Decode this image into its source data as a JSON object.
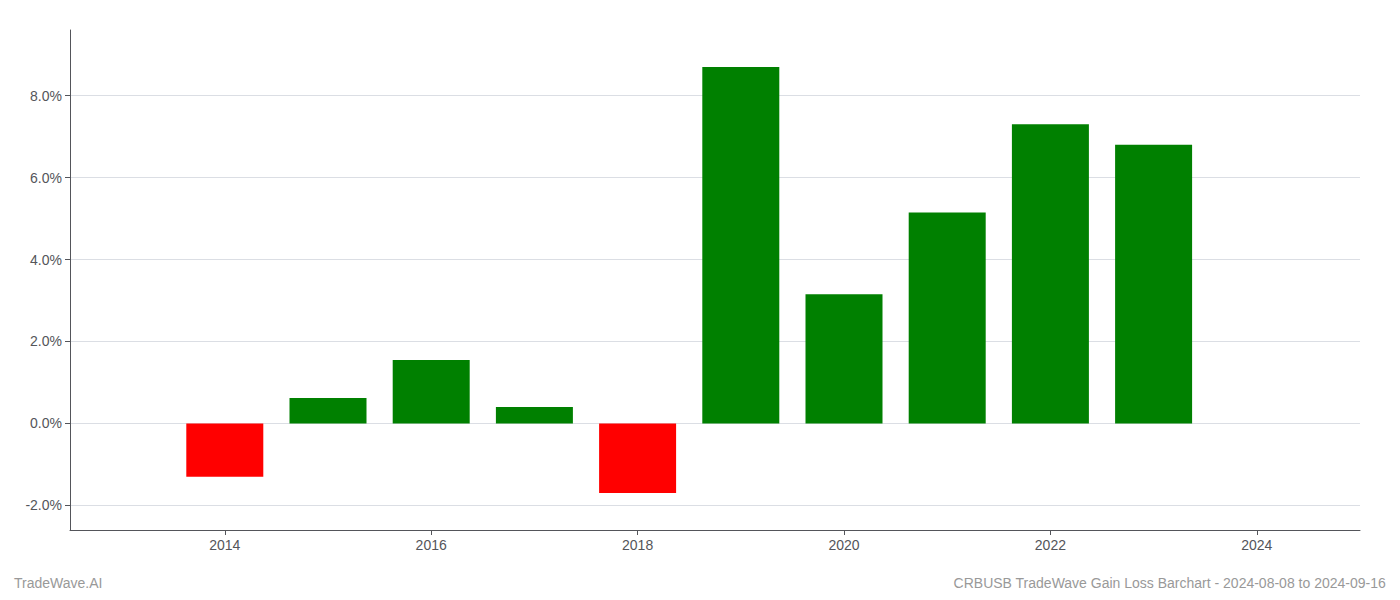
{
  "chart_data": {
    "type": "bar",
    "x": [
      2014,
      2015,
      2016,
      2017,
      2018,
      2019,
      2020,
      2021,
      2022,
      2023
    ],
    "values": [
      -1.3,
      0.62,
      1.55,
      0.4,
      -1.7,
      8.7,
      3.15,
      5.15,
      7.3,
      6.8
    ],
    "colors": [
      "#ff0000",
      "#008000",
      "#008000",
      "#008000",
      "#ff0000",
      "#008000",
      "#008000",
      "#008000",
      "#008000",
      "#008000"
    ],
    "xlim": [
      2012.5,
      2025.0
    ],
    "ylim": [
      -2.6,
      9.6
    ],
    "xticks": [
      2014,
      2016,
      2018,
      2020,
      2022,
      2024
    ],
    "yticks": [
      {
        "value": -2.0,
        "label": "-2.0%"
      },
      {
        "value": 0.0,
        "label": "0.0%"
      },
      {
        "value": 2.0,
        "label": "2.0%"
      },
      {
        "value": 4.0,
        "label": "4.0%"
      },
      {
        "value": 6.0,
        "label": "6.0%"
      },
      {
        "value": 8.0,
        "label": "8.0%"
      }
    ],
    "grid": true,
    "annotations": [
      "TradeWave.AI",
      "CRBUSB TradeWave Gain Loss Barchart - 2024-08-08 to 2024-09-16"
    ]
  }
}
